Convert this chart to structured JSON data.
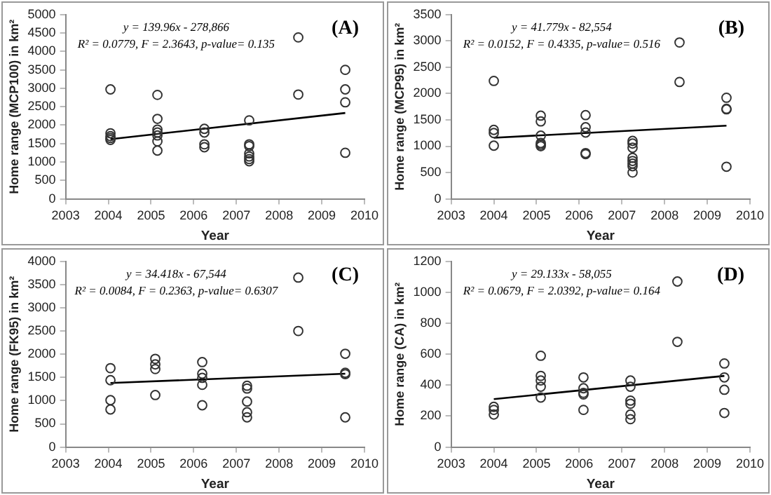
{
  "chart_data": [
    {
      "type": "scatter",
      "title": "(A)",
      "xlabel": "Year",
      "ylabel": "Home range (MCP100) in km²",
      "annotations": [
        "y = 139.96x - 278,866",
        "R² = 0.0779, F = 2.3643, p-value= 0.135"
      ],
      "xlim": [
        2003,
        2010
      ],
      "xticks": [
        2003,
        2004,
        2005,
        2006,
        2007,
        2008,
        2009,
        2010
      ],
      "ylim": [
        0,
        5000
      ],
      "yticks": [
        0,
        500,
        1000,
        1500,
        2000,
        2500,
        3000,
        3500,
        4000,
        4500,
        5000
      ],
      "grid": false,
      "legend": false,
      "series": [
        {
          "marker": "circle",
          "color": "#333333",
          "x": [
            2004.05,
            2004.05,
            2004.05,
            2004.05,
            2004.05,
            2005.15,
            2005.15,
            2005.15,
            2005.15,
            2005.15,
            2005.15,
            2005.15,
            2006.25,
            2006.25,
            2006.25,
            2006.25,
            2007.3,
            2007.3,
            2007.3,
            2007.3,
            2007.3,
            2007.3,
            2007.3,
            2008.45,
            2008.45,
            2009.55,
            2009.55,
            2009.55,
            2009.55
          ],
          "values": [
            2970,
            1780,
            1700,
            1650,
            1600,
            2820,
            2170,
            1880,
            1800,
            1720,
            1560,
            1310,
            1900,
            1800,
            1480,
            1400,
            2130,
            1480,
            1430,
            1230,
            1150,
            1080,
            1020,
            4380,
            2830,
            3500,
            2970,
            2620,
            1250
          ]
        },
        {
          "type": "line",
          "color": "#000000",
          "x": [
            2004.05,
            2009.55
          ],
          "values": [
            1620,
            2330
          ]
        }
      ]
    },
    {
      "type": "scatter",
      "title": "(B)",
      "xlabel": "Year",
      "ylabel": "Home range (MCP95) in km²",
      "annotations": [
        "y = 41.779x - 82,554",
        "R² = 0.0152, F = 0.4335, p-value= 0.516"
      ],
      "xlim": [
        2003,
        2010
      ],
      "xticks": [
        2003,
        2004,
        2005,
        2006,
        2007,
        2008,
        2009,
        2010
      ],
      "ylim": [
        0,
        3500
      ],
      "yticks": [
        0,
        500,
        1000,
        1500,
        2000,
        2500,
        3000,
        3500
      ],
      "grid": false,
      "legend": false,
      "series": [
        {
          "marker": "circle",
          "color": "#333333",
          "x": [
            2004,
            2004,
            2004,
            2004,
            2005.1,
            2005.1,
            2005.1,
            2005.1,
            2005.1,
            2005.1,
            2006.15,
            2006.15,
            2006.15,
            2006.15,
            2006.15,
            2007.25,
            2007.25,
            2007.25,
            2007.25,
            2007.25,
            2007.25,
            2007.25,
            2007.25,
            2008.35,
            2008.35,
            2009.45,
            2009.45,
            2009.45,
            2009.45
          ],
          "values": [
            2240,
            1310,
            1250,
            1010,
            1580,
            1470,
            1200,
            1060,
            1030,
            1000,
            1590,
            1360,
            1260,
            870,
            850,
            1100,
            1050,
            970,
            780,
            720,
            670,
            620,
            500,
            2970,
            2220,
            1920,
            1710,
            1700,
            610
          ]
        },
        {
          "type": "line",
          "color": "#000000",
          "x": [
            2004,
            2009.45
          ],
          "values": [
            1160,
            1390
          ]
        }
      ]
    },
    {
      "type": "scatter",
      "title": "(C)",
      "xlabel": "Year",
      "ylabel": "Home range (FK95) in km²",
      "annotations": [
        "y = 34.418x - 67,544",
        "R² = 0.0084, F = 0.2363, p-value= 0.6307"
      ],
      "xlim": [
        2003,
        2010
      ],
      "xticks": [
        2003,
        2004,
        2005,
        2006,
        2007,
        2008,
        2009,
        2010
      ],
      "ylim": [
        0,
        4000
      ],
      "yticks": [
        0,
        500,
        1000,
        1500,
        2000,
        2500,
        3000,
        3500,
        4000
      ],
      "grid": false,
      "legend": false,
      "series": [
        {
          "marker": "circle",
          "color": "#333333",
          "x": [
            2004.05,
            2004.05,
            2004.05,
            2004.05,
            2005.1,
            2005.1,
            2005.1,
            2005.1,
            2006.2,
            2006.2,
            2006.2,
            2006.2,
            2006.2,
            2007.25,
            2007.25,
            2007.25,
            2007.25,
            2007.25,
            2008.45,
            2008.45,
            2009.55,
            2009.55,
            2009.55,
            2009.55
          ],
          "values": [
            1700,
            1440,
            1010,
            810,
            1900,
            1780,
            1680,
            1120,
            1830,
            1580,
            1490,
            1340,
            900,
            1320,
            1260,
            980,
            750,
            640,
            3650,
            2500,
            2010,
            1600,
            1570,
            640
          ]
        },
        {
          "type": "line",
          "color": "#000000",
          "x": [
            2004.05,
            2009.55
          ],
          "values": [
            1380,
            1580
          ]
        }
      ]
    },
    {
      "type": "scatter",
      "title": "(D)",
      "xlabel": "Year",
      "ylabel": "Home range (CA) in km²",
      "annotations": [
        "y = 29.133x - 58,055",
        "R² = 0.0679, F = 2.0392, p-value= 0.164"
      ],
      "xlim": [
        2003,
        2010
      ],
      "xticks": [
        2003,
        2004,
        2005,
        2006,
        2007,
        2008,
        2009,
        2010
      ],
      "ylim": [
        0,
        1200
      ],
      "yticks": [
        0,
        200,
        400,
        600,
        800,
        1000,
        1200
      ],
      "grid": false,
      "legend": false,
      "series": [
        {
          "marker": "circle",
          "color": "#333333",
          "x": [
            2004,
            2004,
            2004,
            2005.1,
            2005.1,
            2005.1,
            2005.1,
            2005.1,
            2006.1,
            2006.1,
            2006.1,
            2006.1,
            2006.1,
            2007.2,
            2007.2,
            2007.2,
            2007.2,
            2007.2,
            2007.2,
            2008.3,
            2008.3,
            2009.4,
            2009.4,
            2009.4,
            2009.4
          ],
          "values": [
            260,
            240,
            210,
            590,
            460,
            430,
            390,
            320,
            450,
            380,
            350,
            340,
            240,
            430,
            390,
            300,
            280,
            210,
            180,
            1070,
            680,
            540,
            450,
            370,
            220
          ]
        },
        {
          "type": "line",
          "color": "#000000",
          "x": [
            2004,
            2009.4
          ],
          "values": [
            310,
            460
          ]
        }
      ]
    }
  ]
}
